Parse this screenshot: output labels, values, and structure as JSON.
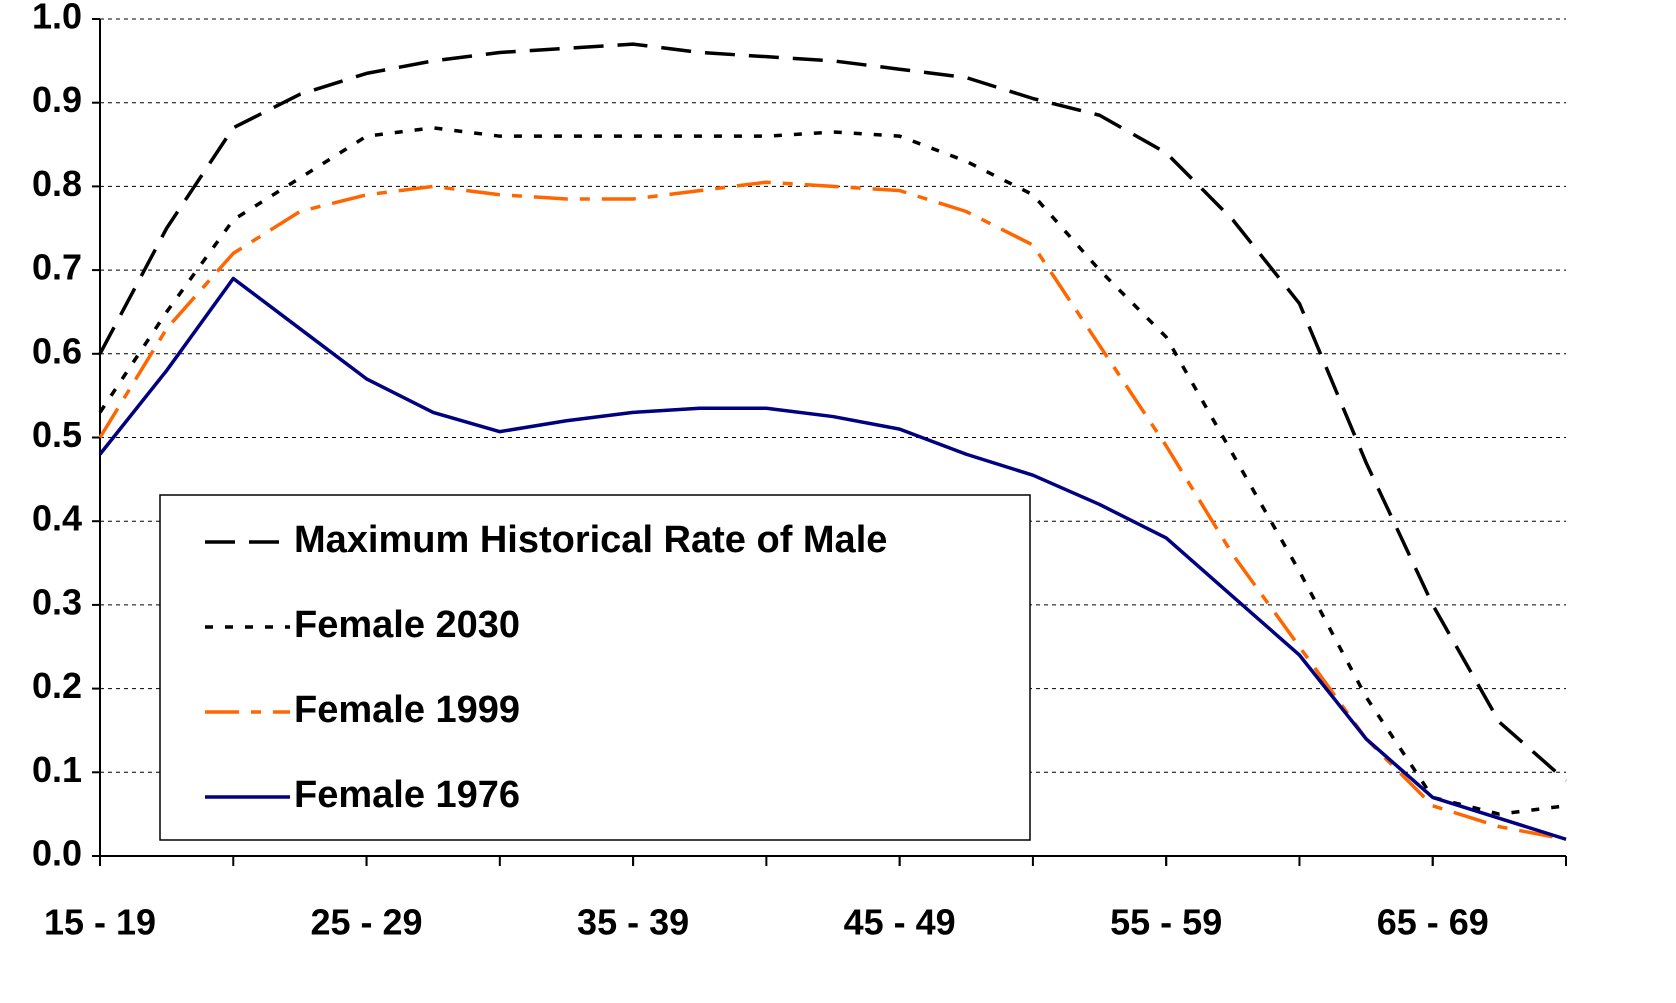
{
  "chart_data": {
    "type": "line",
    "x": [
      15,
      17.5,
      20,
      22.5,
      25,
      27.5,
      30,
      32.5,
      35,
      37.5,
      40,
      42.5,
      45,
      47.5,
      50,
      52.5,
      55,
      57.5,
      60,
      62.5,
      65,
      67.5,
      70
    ],
    "xlim": [
      15,
      70
    ],
    "xticks": [
      {
        "value": 15,
        "label": "15 - 19"
      },
      {
        "value": 25,
        "label": "25 - 29"
      },
      {
        "value": 35,
        "label": "35 - 39"
      },
      {
        "value": 45,
        "label": "45 - 49"
      },
      {
        "value": 55,
        "label": "55 - 59"
      },
      {
        "value": 65,
        "label": "65 - 69"
      }
    ],
    "ylim": [
      0,
      1
    ],
    "yticks": [
      {
        "value": 0,
        "label": "0.0"
      },
      0.1,
      0.2,
      0.3,
      0.4,
      0.5,
      0.6,
      0.7,
      0.8,
      0.9,
      {
        "value": 1,
        "label": "1.0"
      }
    ],
    "grid": true,
    "legend": "lower-left",
    "series": [
      {
        "name": "Maximum Historical Rate of Male",
        "color": "#000000",
        "dash": "dashed",
        "values": [
          0.6,
          0.75,
          0.87,
          0.91,
          0.935,
          0.95,
          0.96,
          0.965,
          0.97,
          0.96,
          0.955,
          0.95,
          0.94,
          0.93,
          0.905,
          0.885,
          0.84,
          0.76,
          0.66,
          0.47,
          0.3,
          0.16,
          0.09
        ]
      },
      {
        "name": "Female 2030",
        "color": "#000000",
        "dash": "dotted",
        "values": [
          0.53,
          0.65,
          0.76,
          0.81,
          0.86,
          0.87,
          0.86,
          0.86,
          0.86,
          0.86,
          0.86,
          0.865,
          0.86,
          0.83,
          0.79,
          0.7,
          0.62,
          0.48,
          0.34,
          0.19,
          0.07,
          0.05,
          0.06
        ]
      },
      {
        "name": "Female 1999",
        "color": "#ff6600",
        "dash": "dash-dot",
        "values": [
          0.5,
          0.63,
          0.72,
          0.77,
          0.79,
          0.8,
          0.79,
          0.785,
          0.785,
          0.795,
          0.805,
          0.8,
          0.795,
          0.77,
          0.73,
          0.61,
          0.49,
          0.36,
          0.25,
          0.14,
          0.06,
          0.035,
          0.02
        ]
      },
      {
        "name": "Female 1976",
        "color": "#000080",
        "dash": "solid",
        "values": [
          0.48,
          0.58,
          0.69,
          0.63,
          0.57,
          0.53,
          0.507,
          0.52,
          0.53,
          0.535,
          0.535,
          0.525,
          0.51,
          0.48,
          0.455,
          0.42,
          0.38,
          0.31,
          0.24,
          0.14,
          0.07,
          0.045,
          0.02
        ]
      }
    ]
  }
}
